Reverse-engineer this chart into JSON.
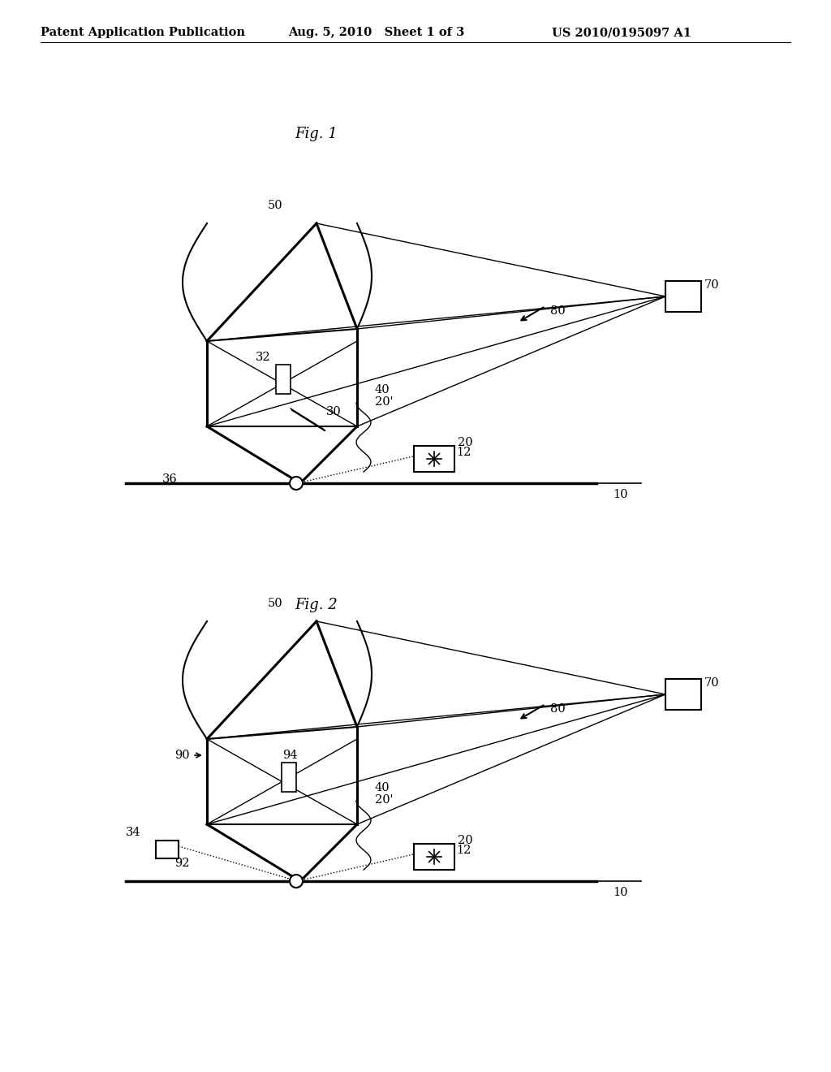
{
  "header_left": "Patent Application Publication",
  "header_mid": "Aug. 5, 2010   Sheet 1 of 3",
  "header_right": "US 2010/0195097 A1",
  "fig1_title": "Fig. 1",
  "fig2_title": "Fig. 2",
  "bg_color": "#ffffff",
  "line_color": "#000000",
  "label_fontsize": 10.5,
  "header_fontsize": 10.5
}
